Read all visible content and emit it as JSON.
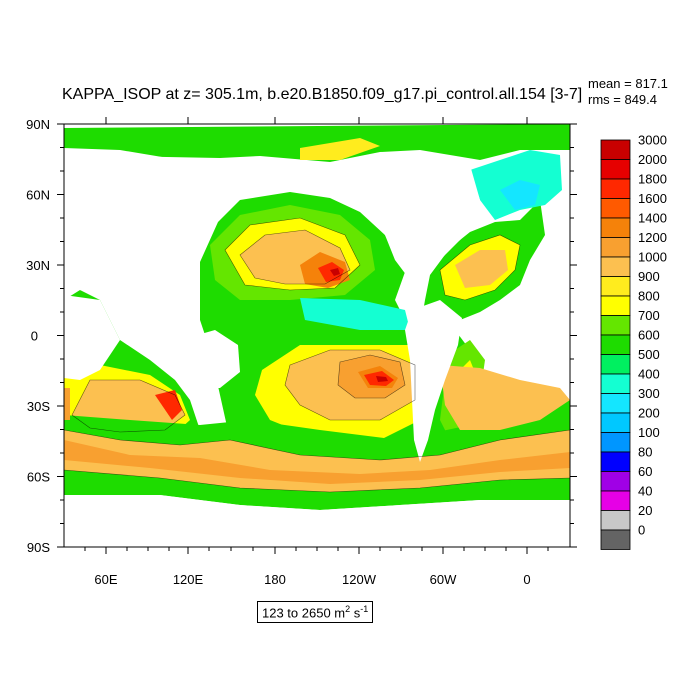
{
  "title": "KAPPA_ISOP at z= 305.1m, b.e20.B1850.f09_g17.pi_control.all.154 [3-7]",
  "stats": {
    "mean": "mean = 817.1",
    "rms": "rms = 849.4"
  },
  "units": {
    "range": "123 to 2650 m",
    "sup1": "2",
    "mid": " s",
    "sup2": "-1"
  },
  "map_axes": {
    "lat_labels": [
      "90N",
      "60N",
      "30N",
      "0",
      "30S",
      "60S",
      "90S"
    ],
    "lon_labels": [
      "60E",
      "120E",
      "180",
      "120W",
      "60W",
      "0"
    ]
  },
  "colorbar": {
    "levels": [
      "3000",
      "2000",
      "1800",
      "1600",
      "1400",
      "1200",
      "1000",
      "900",
      "800",
      "700",
      "600",
      "500",
      "400",
      "300",
      "200",
      "100",
      "80",
      "60",
      "40",
      "20",
      "0"
    ],
    "colors": [
      "#c80000",
      "#e60000",
      "#ff2800",
      "#ff5a00",
      "#f5820a",
      "#f8a030",
      "#fcc050",
      "#ffec1e",
      "#ffff00",
      "#64e600",
      "#1edc00",
      "#00f060",
      "#14ffd2",
      "#14e6ff",
      "#00c8ff",
      "#0096ff",
      "#0000ff",
      "#a000e6",
      "#e600e6",
      "#c8c8c8",
      "#646464"
    ]
  },
  "colors": {
    "land": "#ffffff",
    "ocean_base": "#1edc00"
  }
}
